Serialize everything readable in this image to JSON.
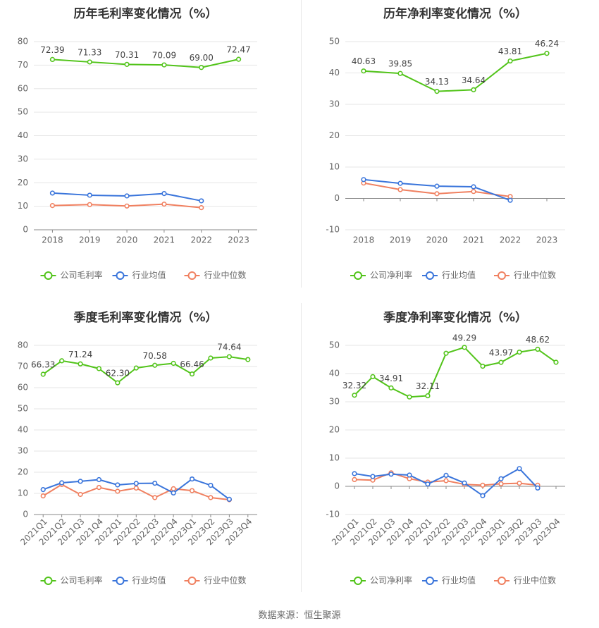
{
  "colors": {
    "company": "#52c41a",
    "industry_avg": "#3a75db",
    "industry_median": "#f08060",
    "grid": "#e6e6e6",
    "axis": "#888888",
    "text": "#666666",
    "title": "#333333"
  },
  "source": "数据来源：恒生聚源",
  "chart_data": [
    {
      "type": "line",
      "title": "历年毛利率变化情况（%）",
      "categories": [
        "2018",
        "2019",
        "2020",
        "2021",
        "2022",
        "2023"
      ],
      "ylim": [
        0,
        80
      ],
      "yticks": [
        0,
        10,
        20,
        30,
        40,
        50,
        60,
        70,
        80
      ],
      "grid": true,
      "legend_position": "bottom",
      "series": [
        {
          "name": "公司毛利率",
          "color_key": "company",
          "values": [
            72.39,
            71.33,
            70.31,
            70.09,
            69.0,
            72.47
          ],
          "labels": [
            "72.39",
            "71.33",
            "70.31",
            "70.09",
            "69.00",
            "72.47"
          ]
        },
        {
          "name": "行业均值",
          "color_key": "industry_avg",
          "values": [
            15.6,
            14.7,
            14.4,
            15.4,
            12.3,
            null
          ]
        },
        {
          "name": "行业中位数",
          "color_key": "industry_median",
          "values": [
            10.3,
            10.7,
            10.1,
            10.9,
            9.4,
            null
          ]
        }
      ]
    },
    {
      "type": "line",
      "title": "历年净利率变化情况（%）",
      "categories": [
        "2018",
        "2019",
        "2020",
        "2021",
        "2022",
        "2023"
      ],
      "ylim": [
        -10,
        50
      ],
      "yticks": [
        -10,
        0,
        10,
        20,
        30,
        40,
        50
      ],
      "grid": true,
      "legend_position": "bottom",
      "series": [
        {
          "name": "公司净利率",
          "color_key": "company",
          "values": [
            40.63,
            39.85,
            34.13,
            34.64,
            43.81,
            46.24
          ],
          "labels": [
            "40.63",
            "39.85",
            "34.13",
            "34.64",
            "43.81",
            "46.24"
          ]
        },
        {
          "name": "行业均值",
          "color_key": "industry_avg",
          "values": [
            6.0,
            4.8,
            3.9,
            3.7,
            -0.6,
            null
          ]
        },
        {
          "name": "行业中位数",
          "color_key": "industry_median",
          "values": [
            4.9,
            2.8,
            1.5,
            2.2,
            0.6,
            null
          ]
        }
      ]
    },
    {
      "type": "line",
      "title": "季度毛利率变化情况（%）",
      "categories": [
        "2021Q1",
        "2021Q2",
        "2021Q3",
        "2021Q4",
        "2022Q1",
        "2022Q2",
        "2022Q3",
        "2022Q4",
        "2023Q1",
        "2023Q2",
        "2023Q3",
        "2023Q4"
      ],
      "ylim": [
        0,
        80
      ],
      "yticks": [
        0,
        10,
        20,
        30,
        40,
        50,
        60,
        70,
        80
      ],
      "grid": true,
      "legend_position": "bottom",
      "series": [
        {
          "name": "公司毛利率",
          "color_key": "company",
          "values": [
            66.33,
            72.7,
            71.24,
            69.0,
            62.3,
            69.3,
            70.58,
            71.5,
            66.46,
            74.0,
            74.64,
            73.3
          ],
          "labels": [
            "66.33",
            "",
            "71.24",
            "",
            "62.30",
            "",
            "70.58",
            "",
            "66.46",
            "",
            "74.64",
            ""
          ]
        },
        {
          "name": "行业均值",
          "color_key": "industry_avg",
          "values": [
            11.8,
            15.0,
            15.7,
            16.5,
            14.0,
            14.7,
            14.8,
            10.2,
            16.8,
            13.8,
            7.2,
            null
          ]
        },
        {
          "name": "行业中位数",
          "color_key": "industry_median",
          "values": [
            8.8,
            14.2,
            9.5,
            12.8,
            11.0,
            12.5,
            8.0,
            12.2,
            11.3,
            8.0,
            7.0,
            null
          ]
        }
      ]
    },
    {
      "type": "line",
      "title": "季度净利率变化情况（%）",
      "categories": [
        "2021Q1",
        "2021Q2",
        "2021Q3",
        "2021Q4",
        "2022Q1",
        "2022Q2",
        "2022Q3",
        "2022Q4",
        "2023Q1",
        "2023Q2",
        "2023Q3",
        "2023Q4"
      ],
      "ylim": [
        -10,
        50
      ],
      "yticks": [
        -10,
        0,
        10,
        20,
        30,
        40,
        50
      ],
      "grid": true,
      "legend_position": "bottom",
      "series": [
        {
          "name": "公司净利率",
          "color_key": "company",
          "values": [
            32.32,
            38.9,
            34.91,
            31.7,
            32.11,
            47.2,
            49.29,
            42.6,
            43.97,
            47.6,
            48.62,
            44.0
          ],
          "labels": [
            "32.32",
            "",
            "34.91",
            "",
            "32.11",
            "",
            "49.29",
            "",
            "43.97",
            "",
            "48.62",
            ""
          ]
        },
        {
          "name": "行业均值",
          "color_key": "industry_avg",
          "values": [
            4.5,
            3.5,
            4.3,
            4.0,
            0.8,
            3.9,
            1.2,
            -3.3,
            2.7,
            6.3,
            -0.6,
            null
          ]
        },
        {
          "name": "行业中位数",
          "color_key": "industry_median",
          "values": [
            2.4,
            2.2,
            4.8,
            2.7,
            1.5,
            2.0,
            0.7,
            0.4,
            0.9,
            1.1,
            0.4,
            null
          ]
        }
      ]
    }
  ]
}
